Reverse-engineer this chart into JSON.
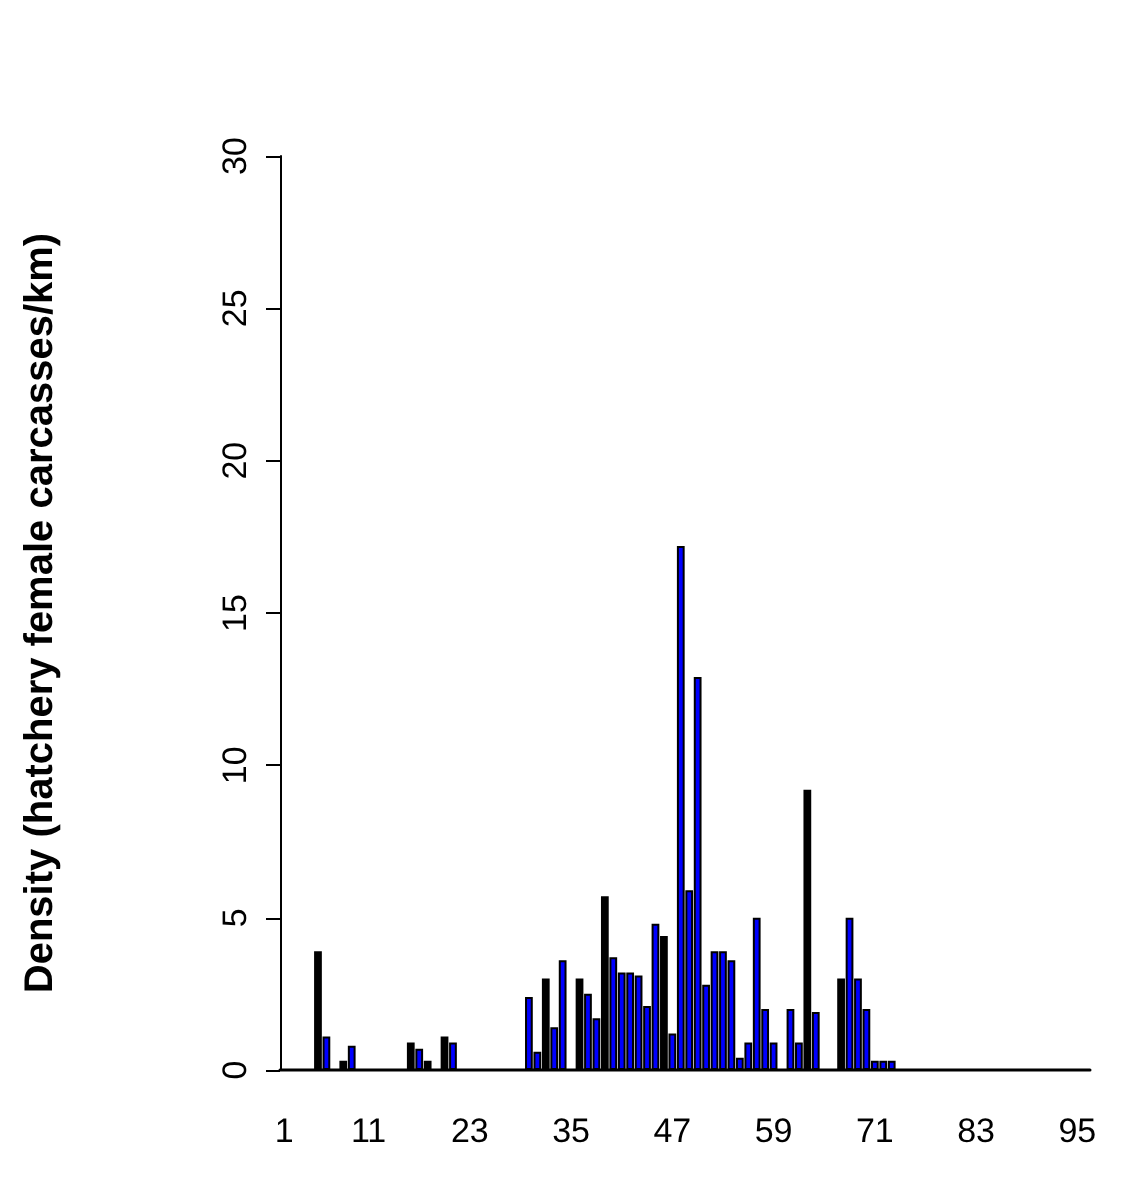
{
  "chart_data": {
    "type": "bar",
    "ylabel": "Density (hatchery female carcasses/km)",
    "categories": [
      "1",
      null,
      null,
      null,
      null,
      null,
      null,
      null,
      null,
      null,
      "11",
      null,
      null,
      null,
      null,
      null,
      null,
      null,
      null,
      null,
      null,
      null,
      "23",
      null,
      null,
      null,
      null,
      null,
      null,
      null,
      null,
      null,
      null,
      null,
      "35",
      null,
      null,
      null,
      null,
      null,
      null,
      null,
      null,
      null,
      null,
      null,
      "47",
      null,
      null,
      null,
      null,
      null,
      null,
      null,
      null,
      null,
      null,
      null,
      "59",
      null,
      null,
      null,
      null,
      null,
      null,
      null,
      null,
      null,
      null,
      null,
      "71",
      null,
      null,
      null,
      null,
      null,
      null,
      null,
      null,
      null,
      null,
      null,
      "83",
      null,
      null,
      null,
      null,
      null,
      null,
      null,
      null,
      null,
      null,
      null,
      "95",
      null
    ],
    "values": [
      0,
      0,
      0,
      0,
      3.9,
      1.1,
      0,
      0.3,
      0.8,
      0,
      0,
      0,
      0,
      0,
      0,
      0.9,
      0.7,
      0.3,
      0,
      1.1,
      0.9,
      0,
      0,
      0,
      0,
      0,
      0,
      0,
      0,
      2.4,
      0.6,
      3.0,
      1.4,
      3.6,
      0,
      3.0,
      2.5,
      1.7,
      5.7,
      3.7,
      3.2,
      3.2,
      3.1,
      2.1,
      4.8,
      4.4,
      1.2,
      17.2,
      5.9,
      12.9,
      2.8,
      3.9,
      3.9,
      3.6,
      0.4,
      0.9,
      5.0,
      2.0,
      0.9,
      0,
      2.0,
      0.9,
      9.2,
      1.9,
      0,
      0,
      3.0,
      5.0,
      3.0,
      2.0,
      0.3,
      0.3,
      0.3,
      0,
      0,
      0,
      0,
      0,
      0,
      0,
      0,
      0,
      0,
      0,
      0,
      0,
      0,
      0,
      0,
      0,
      0,
      0,
      0,
      0,
      0,
      0
    ],
    "colors": [
      "#000000",
      "#000000",
      "#000000",
      "#000000",
      "#000000",
      "#0000ff",
      "#000000",
      "#000000",
      "#0000ff",
      "#000000",
      "#000000",
      "#000000",
      "#000000",
      "#000000",
      "#000000",
      "#000000",
      "#0000ff",
      "#000000",
      "#000000",
      "#000000",
      "#0000ff",
      "#000000",
      "#000000",
      "#000000",
      "#000000",
      "#000000",
      "#000000",
      "#000000",
      "#000000",
      "#0000ff",
      "#0000ff",
      "#000000",
      "#0000ff",
      "#0000ff",
      "#000000",
      "#000000",
      "#0000ff",
      "#0000ff",
      "#000000",
      "#0000ff",
      "#0000ff",
      "#0000ff",
      "#0000ff",
      "#0000ff",
      "#0000ff",
      "#000000",
      "#0000ff",
      "#0000ff",
      "#0000ff",
      "#0000ff",
      "#0000ff",
      "#0000ff",
      "#0000ff",
      "#0000ff",
      "#0000ff",
      "#0000ff",
      "#0000ff",
      "#0000ff",
      "#0000ff",
      "#000000",
      "#0000ff",
      "#0000ff",
      "#000000",
      "#0000ff",
      "#000000",
      "#000000",
      "#000000",
      "#0000ff",
      "#0000ff",
      "#0000ff",
      "#0000ff",
      "#0000ff",
      "#0000ff",
      "#000000",
      "#000000",
      "#000000",
      "#000000",
      "#000000",
      "#000000",
      "#000000",
      "#000000",
      "#000000",
      "#000000",
      "#000000",
      "#000000",
      "#000000",
      "#000000",
      "#000000",
      "#000000",
      "#000000",
      "#000000",
      "#000000",
      "#000000",
      "#000000",
      "#000000",
      "#000000"
    ],
    "ylim": [
      0,
      30
    ],
    "yticks": [
      0,
      5,
      10,
      15,
      20,
      25,
      30
    ],
    "grid": false
  }
}
